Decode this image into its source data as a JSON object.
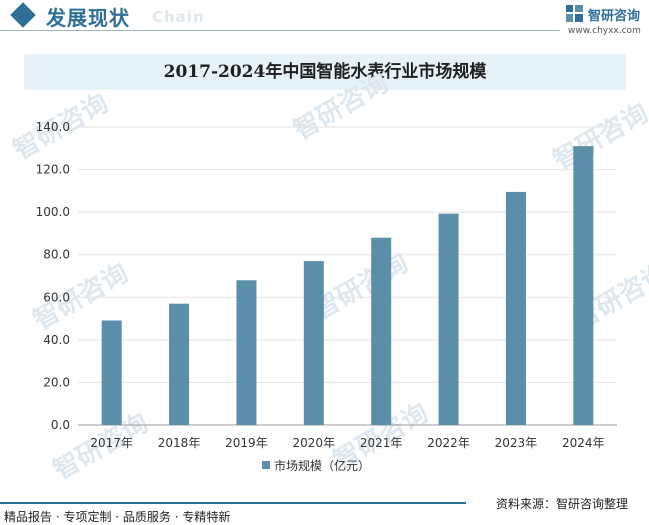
{
  "header": {
    "title": "发展现状",
    "subtitle": "Chain"
  },
  "logo": {
    "name": "智研咨询",
    "url": "www.chyxx.com",
    "watermark": "智研咨询"
  },
  "footer": {
    "left": "精品报告 · 专项定制 · 品质服务 · 专精特新",
    "right": "资料来源：智研咨询整理"
  },
  "colors": {
    "accent": "#2e6f97",
    "bar": "#5b8ea8",
    "title_band": "#e6f1f8"
  },
  "chart_data": {
    "type": "bar",
    "title": "2017-2024年中国智能水表行业市场规模",
    "categories": [
      "2017年",
      "2018年",
      "2019年",
      "2020年",
      "2021年",
      "2022年",
      "2023年",
      "2024年"
    ],
    "series": [
      {
        "name": "市场规模（亿元）",
        "values": [
          49.1,
          57.0,
          68.0,
          77.0,
          88.0,
          99.3,
          109.5,
          131.0
        ]
      }
    ],
    "ylim": [
      0,
      140
    ],
    "yticks": [
      "0.0",
      "20.0",
      "40.0",
      "60.0",
      "80.0",
      "100.0",
      "120.0",
      "140.0"
    ],
    "grid": true,
    "legend_position": "bottom"
  }
}
